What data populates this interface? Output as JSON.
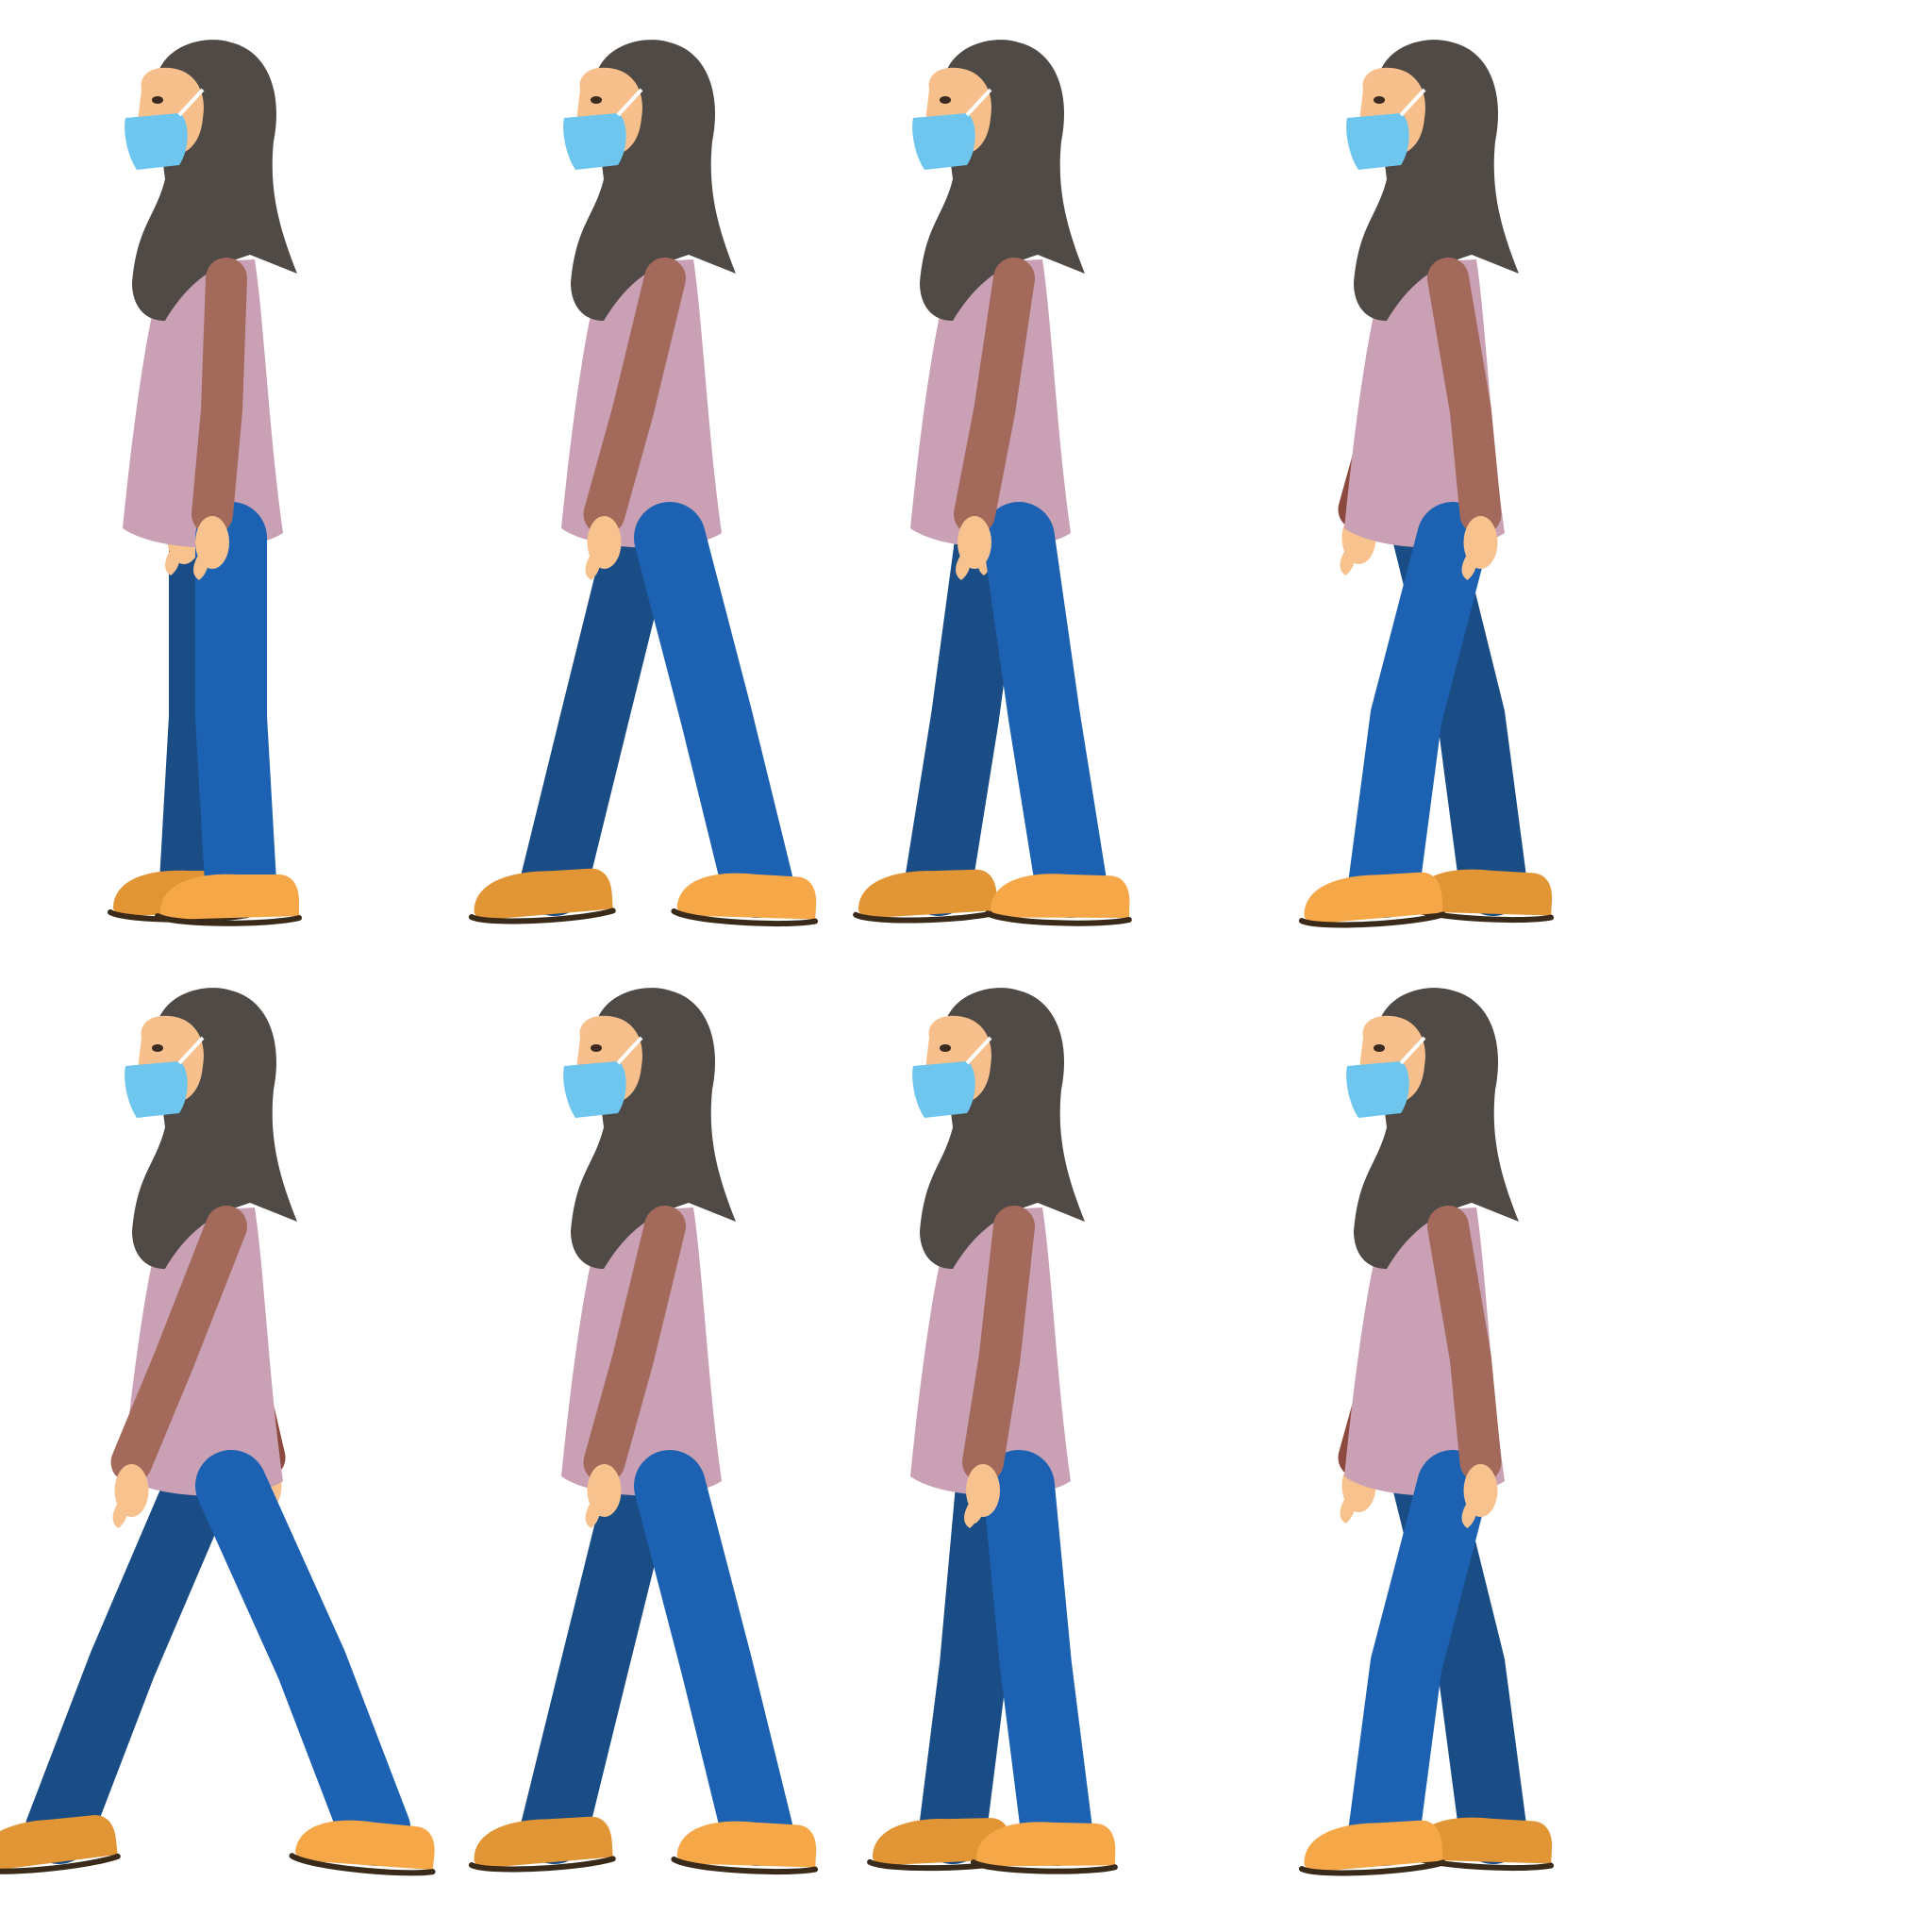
{
  "sprite_sheet": {
    "rows": 2,
    "columns": 4,
    "frame_count": 8,
    "frames": [
      {
        "row": 1,
        "col": 1,
        "pose": "standing",
        "step_phase": 0.0
      },
      {
        "row": 1,
        "col": 2,
        "pose": "walking",
        "step_phase": 0.55
      },
      {
        "row": 1,
        "col": 3,
        "pose": "walking",
        "step_phase": 0.3
      },
      {
        "row": 1,
        "col": 4,
        "pose": "walking",
        "step_phase": -0.55
      },
      {
        "row": 2,
        "col": 1,
        "pose": "walking",
        "step_phase": 0.95
      },
      {
        "row": 2,
        "col": 2,
        "pose": "walking",
        "step_phase": 0.55
      },
      {
        "row": 2,
        "col": 3,
        "pose": "walking",
        "step_phase": 0.2
      },
      {
        "row": 2,
        "col": 4,
        "pose": "walking",
        "step_phase": -0.55
      }
    ]
  },
  "character": {
    "description_icon": "walking-woman-hijab-mask-icon",
    "colors": {
      "hijab": "#4f4a45",
      "face_skin": "#f6bf8b",
      "hand_skin": "#f8c28f",
      "mask": "#6ec6ef",
      "mask_strap": "#ffffff",
      "top": "#c9a0b4",
      "near_sleeve": "#a3695a",
      "far_sleeve": "#8c4a3e",
      "jeans_near": "#1d62b2",
      "jeans_far": "#1a4d86",
      "shoe_near": "#f6a748",
      "shoe_far": "#e19534",
      "sole": "#3a2a1a",
      "eye": "#3b2a20"
    }
  },
  "background": "#ffffff"
}
